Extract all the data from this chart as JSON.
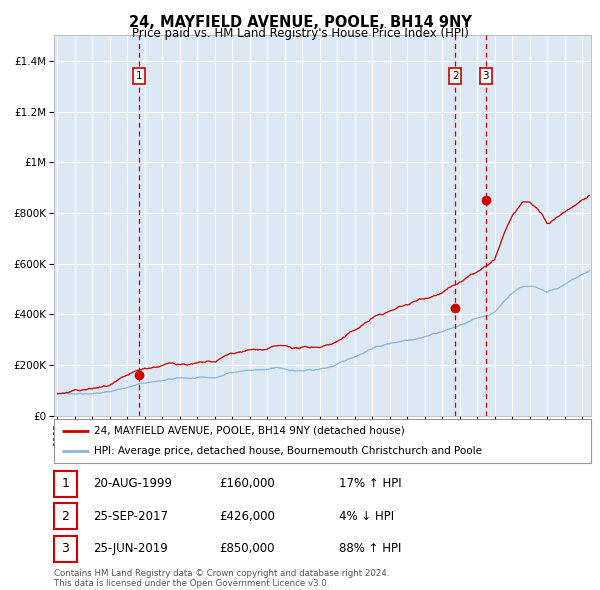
{
  "title": "24, MAYFIELD AVENUE, POOLE, BH14 9NY",
  "subtitle": "Price paid vs. HM Land Registry's House Price Index (HPI)",
  "background_color": "#ffffff",
  "plot_bg_color": "#dce9f5",
  "hpi_line_color": "#8ab4d8",
  "price_line_color": "#cc0000",
  "sale_marker_color": "#cc0000",
  "dashed_line_color": "#cc0000",
  "grid_color": "#ffffff",
  "sale_points": [
    {
      "date_num": 1999.644,
      "price": 160000,
      "label": "1"
    },
    {
      "date_num": 2017.731,
      "price": 426000,
      "label": "2"
    },
    {
      "date_num": 2019.479,
      "price": 850000,
      "label": "3"
    }
  ],
  "legend_entries": [
    "24, MAYFIELD AVENUE, POOLE, BH14 9NY (detached house)",
    "HPI: Average price, detached house, Bournemouth Christchurch and Poole"
  ],
  "table_rows": [
    {
      "num": "1",
      "date": "20-AUG-1999",
      "price": "£160,000",
      "hpi": "17% ↑ HPI"
    },
    {
      "num": "2",
      "date": "25-SEP-2017",
      "price": "£426,000",
      "hpi": "4% ↓ HPI"
    },
    {
      "num": "3",
      "date": "25-JUN-2019",
      "price": "£850,000",
      "hpi": "88% ↑ HPI"
    }
  ],
  "footer": "Contains HM Land Registry data © Crown copyright and database right 2024.\nThis data is licensed under the Open Government Licence v3.0.",
  "xlim": [
    1994.8,
    2025.5
  ],
  "ylim": [
    0,
    1500000
  ],
  "yticks": [
    0,
    200000,
    400000,
    600000,
    800000,
    1000000,
    1200000,
    1400000
  ],
  "xtick_years": [
    1995,
    1996,
    1997,
    1998,
    1999,
    2000,
    2001,
    2002,
    2003,
    2004,
    2005,
    2006,
    2007,
    2008,
    2009,
    2010,
    2011,
    2012,
    2013,
    2014,
    2015,
    2016,
    2017,
    2018,
    2019,
    2020,
    2021,
    2022,
    2023,
    2024,
    2025
  ]
}
